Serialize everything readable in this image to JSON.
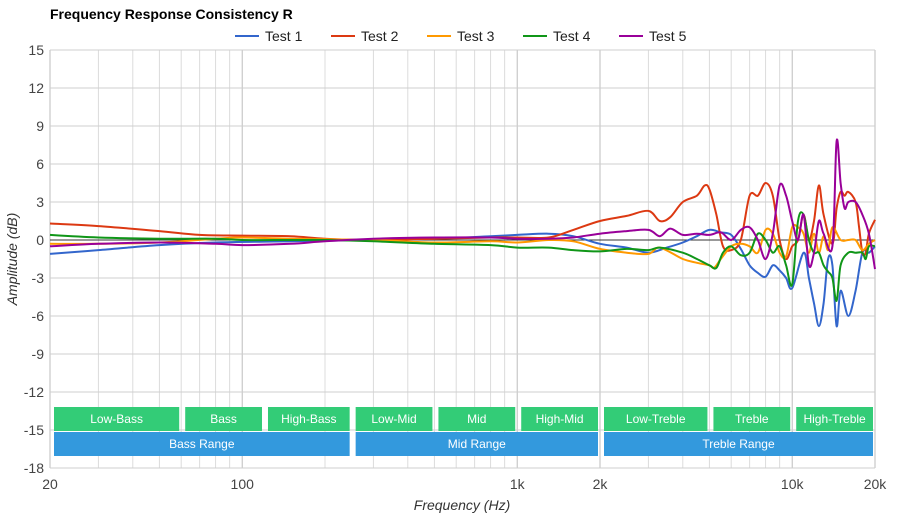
{
  "chart_data": {
    "type": "line",
    "title": "Frequency Response Consistency R",
    "xlabel": "Frequency (Hz)",
    "ylabel": "Amplitude (dB)",
    "x_scale": "log",
    "xlim": [
      20,
      20000
    ],
    "ylim": [
      -18,
      15
    ],
    "y_ticks": [
      15,
      12,
      9,
      6,
      3,
      0,
      -3,
      -6,
      -9,
      -12,
      -15,
      -18
    ],
    "x_ticks": [
      {
        "value": 20,
        "label": "20"
      },
      {
        "value": 100,
        "label": "100"
      },
      {
        "value": 1000,
        "label": "1k"
      },
      {
        "value": 2000,
        "label": "2k"
      },
      {
        "value": 10000,
        "label": "10k"
      },
      {
        "value": 20000,
        "label": "20k"
      }
    ],
    "grid": true,
    "legend_position": "top",
    "series": [
      {
        "name": "Test 1",
        "color": "#3366cc",
        "points": [
          [
            20,
            -1.1
          ],
          [
            30,
            -0.8
          ],
          [
            50,
            -0.4
          ],
          [
            80,
            -0.2
          ],
          [
            150,
            -0.1
          ],
          [
            300,
            0
          ],
          [
            500,
            0.1
          ],
          [
            800,
            0.3
          ],
          [
            1000,
            0.4
          ],
          [
            1300,
            0.5
          ],
          [
            1600,
            0.3
          ],
          [
            2000,
            -0.3
          ],
          [
            2500,
            -0.6
          ],
          [
            3000,
            -1.0
          ],
          [
            3500,
            -0.6
          ],
          [
            4000,
            -0.2
          ],
          [
            4500,
            0.3
          ],
          [
            5000,
            0.8
          ],
          [
            5500,
            0.6
          ],
          [
            6000,
            0.4
          ],
          [
            6500,
            -0.7
          ],
          [
            7000,
            -2.0
          ],
          [
            7500,
            -2.6
          ],
          [
            8000,
            -2.9
          ],
          [
            8500,
            -2.0
          ],
          [
            9000,
            -2.4
          ],
          [
            9500,
            -3.0
          ],
          [
            10000,
            -3.8
          ],
          [
            11000,
            -1.0
          ],
          [
            11500,
            -3.0
          ],
          [
            12000,
            -5.0
          ],
          [
            12500,
            -6.8
          ],
          [
            13000,
            -5.0
          ],
          [
            13500,
            -1.5
          ],
          [
            14000,
            -2.0
          ],
          [
            14500,
            -6.8
          ],
          [
            15000,
            -4.0
          ],
          [
            16000,
            -6.0
          ],
          [
            17000,
            -4.0
          ],
          [
            18000,
            -1.0
          ],
          [
            19000,
            -1.0
          ],
          [
            20000,
            -0.5
          ]
        ]
      },
      {
        "name": "Test 2",
        "color": "#dc3912",
        "points": [
          [
            20,
            1.3
          ],
          [
            30,
            1.1
          ],
          [
            50,
            0.7
          ],
          [
            70,
            0.4
          ],
          [
            100,
            0.35
          ],
          [
            150,
            0.3
          ],
          [
            200,
            0.1
          ],
          [
            300,
            0
          ],
          [
            500,
            0.1
          ],
          [
            800,
            0.2
          ],
          [
            1000,
            0.2
          ],
          [
            1300,
            0.2
          ],
          [
            1600,
            0.8
          ],
          [
            2000,
            1.5
          ],
          [
            2500,
            1.9
          ],
          [
            3000,
            2.3
          ],
          [
            3300,
            1.5
          ],
          [
            3600,
            1.8
          ],
          [
            4000,
            3.0
          ],
          [
            4500,
            3.5
          ],
          [
            4800,
            4.3
          ],
          [
            5000,
            4.0
          ],
          [
            5300,
            2.0
          ],
          [
            5600,
            -0.5
          ],
          [
            6000,
            -0.8
          ],
          [
            6500,
            0.0
          ],
          [
            7000,
            3.5
          ],
          [
            7500,
            3.5
          ],
          [
            8000,
            4.5
          ],
          [
            8500,
            3.5
          ],
          [
            9000,
            0.0
          ],
          [
            9500,
            -1.5
          ],
          [
            10000,
            -0.5
          ],
          [
            10500,
            0.0
          ],
          [
            11000,
            2.0
          ],
          [
            11500,
            0.0
          ],
          [
            12000,
            1.5
          ],
          [
            12500,
            4.3
          ],
          [
            13000,
            2.0
          ],
          [
            14000,
            -0.3
          ],
          [
            14500,
            2.5
          ],
          [
            15000,
            3.8
          ],
          [
            15500,
            3.5
          ],
          [
            16000,
            3.8
          ],
          [
            17000,
            3.0
          ],
          [
            17500,
            1.0
          ],
          [
            18000,
            -1.0
          ],
          [
            18500,
            -1.0
          ],
          [
            19000,
            0.5
          ],
          [
            20000,
            1.6
          ]
        ]
      },
      {
        "name": "Test 3",
        "color": "#ff9900",
        "points": [
          [
            20,
            -0.3
          ],
          [
            30,
            -0.3
          ],
          [
            50,
            -0.2
          ],
          [
            80,
            0.1
          ],
          [
            100,
            0.2
          ],
          [
            150,
            0.1
          ],
          [
            300,
            0
          ],
          [
            500,
            -0.2
          ],
          [
            800,
            -0.1
          ],
          [
            1000,
            -0.2
          ],
          [
            1300,
            0
          ],
          [
            1600,
            -0.1
          ],
          [
            2000,
            -0.7
          ],
          [
            2500,
            -1.0
          ],
          [
            3000,
            -1.1
          ],
          [
            3300,
            -0.6
          ],
          [
            4000,
            -1.5
          ],
          [
            4500,
            -1.8
          ],
          [
            5000,
            -2.0
          ],
          [
            5200,
            -2.2
          ],
          [
            5500,
            -1.5
          ],
          [
            6000,
            -0.5
          ],
          [
            6500,
            -0.3
          ],
          [
            7000,
            -0.5
          ],
          [
            7500,
            -1.0
          ],
          [
            8000,
            0.8
          ],
          [
            8500,
            0.5
          ],
          [
            9000,
            -1.0
          ],
          [
            9500,
            -1.3
          ],
          [
            10000,
            1.0
          ],
          [
            10500,
            1.0
          ],
          [
            11000,
            0.5
          ],
          [
            11500,
            -1.0
          ],
          [
            12000,
            0.5
          ],
          [
            12500,
            -1.0
          ],
          [
            13000,
            0.3
          ],
          [
            13500,
            -0.8
          ],
          [
            14000,
            1.0
          ],
          [
            15000,
            0
          ],
          [
            16000,
            0
          ],
          [
            17000,
            0
          ],
          [
            18000,
            -0.8
          ],
          [
            19000,
            -0.3
          ],
          [
            20000,
            0
          ]
        ]
      },
      {
        "name": "Test 4",
        "color": "#109618",
        "points": [
          [
            20,
            0.4
          ],
          [
            30,
            0.2
          ],
          [
            50,
            0.1
          ],
          [
            80,
            0.1
          ],
          [
            100,
            0
          ],
          [
            150,
            0
          ],
          [
            200,
            0
          ],
          [
            300,
            -0.1
          ],
          [
            500,
            -0.3
          ],
          [
            800,
            -0.4
          ],
          [
            1000,
            -0.6
          ],
          [
            1300,
            -0.6
          ],
          [
            1600,
            -0.8
          ],
          [
            2000,
            -0.9
          ],
          [
            2500,
            -0.7
          ],
          [
            3000,
            -0.8
          ],
          [
            3300,
            -0.6
          ],
          [
            4000,
            -1.0
          ],
          [
            4500,
            -1.5
          ],
          [
            5000,
            -2.0
          ],
          [
            5300,
            -2.2
          ],
          [
            5600,
            -1.0
          ],
          [
            6000,
            -0.5
          ],
          [
            6500,
            -1.2
          ],
          [
            7000,
            -1.0
          ],
          [
            7500,
            0.5
          ],
          [
            8000,
            0.0
          ],
          [
            8500,
            -1.0
          ],
          [
            9000,
            -0.5
          ],
          [
            9500,
            -2.0
          ],
          [
            10000,
            -3.5
          ],
          [
            10500,
            1.5
          ],
          [
            11000,
            2.0
          ],
          [
            11500,
            0.0
          ],
          [
            12000,
            -1.0
          ],
          [
            12500,
            -1.0
          ],
          [
            13000,
            -2.0
          ],
          [
            13500,
            -2.5
          ],
          [
            14000,
            -3.0
          ],
          [
            14500,
            -4.8
          ],
          [
            15000,
            -2.0
          ],
          [
            16000,
            -1.0
          ],
          [
            17000,
            -1.0
          ],
          [
            18000,
            -1.0
          ],
          [
            18500,
            -1.5
          ],
          [
            19000,
            -0.5
          ],
          [
            20000,
            -0.5
          ]
        ]
      },
      {
        "name": "Test 5",
        "color": "#990099",
        "points": [
          [
            20,
            -0.5
          ],
          [
            30,
            -0.3
          ],
          [
            50,
            -0.2
          ],
          [
            80,
            -0.3
          ],
          [
            100,
            -0.4
          ],
          [
            150,
            -0.3
          ],
          [
            200,
            -0.1
          ],
          [
            300,
            0.1
          ],
          [
            500,
            0.2
          ],
          [
            800,
            0.2
          ],
          [
            1000,
            0.1
          ],
          [
            1300,
            0.1
          ],
          [
            1600,
            0.2
          ],
          [
            2000,
            0.5
          ],
          [
            2500,
            0.7
          ],
          [
            3000,
            0.8
          ],
          [
            3300,
            0.3
          ],
          [
            3600,
            0.9
          ],
          [
            4000,
            0.4
          ],
          [
            4500,
            0.5
          ],
          [
            5000,
            0.4
          ],
          [
            5500,
            0.6
          ],
          [
            6000,
            0.0
          ],
          [
            6500,
            0.8
          ],
          [
            7000,
            1.0
          ],
          [
            7500,
            0.0
          ],
          [
            8000,
            -1.5
          ],
          [
            8500,
            0.5
          ],
          [
            9000,
            4.3
          ],
          [
            9500,
            3.5
          ],
          [
            10000,
            1.5
          ],
          [
            10500,
            0.0
          ],
          [
            11000,
            2.0
          ],
          [
            11500,
            -2.0
          ],
          [
            12000,
            -1.0
          ],
          [
            12500,
            1.5
          ],
          [
            13000,
            0.5
          ],
          [
            14000,
            -0.5
          ],
          [
            14500,
            7.8
          ],
          [
            15000,
            4.5
          ],
          [
            15500,
            2.5
          ],
          [
            16000,
            3.0
          ],
          [
            17000,
            3.0
          ],
          [
            18000,
            2.0
          ],
          [
            19000,
            0.5
          ],
          [
            20000,
            -2.3
          ]
        ]
      }
    ],
    "bands_top": [
      {
        "label": "Low-Bass",
        "from": 20,
        "to": 60
      },
      {
        "label": "Bass",
        "from": 60,
        "to": 120
      },
      {
        "label": "High-Bass",
        "from": 120,
        "to": 250
      },
      {
        "label": "Low-Mid",
        "from": 250,
        "to": 500
      },
      {
        "label": "Mid",
        "from": 500,
        "to": 1000
      },
      {
        "label": "High-Mid",
        "from": 1000,
        "to": 2000
      },
      {
        "label": "Low-Treble",
        "from": 2000,
        "to": 5000
      },
      {
        "label": "Treble",
        "from": 5000,
        "to": 10000
      },
      {
        "label": "High-Treble",
        "from": 10000,
        "to": 20000
      }
    ],
    "bands_bottom": [
      {
        "label": "Bass Range",
        "from": 20,
        "to": 250
      },
      {
        "label": "Mid Range",
        "from": 250,
        "to": 2000
      },
      {
        "label": "Treble Range",
        "from": 2000,
        "to": 20000
      }
    ],
    "band_colors": {
      "top": "#33cc77",
      "bottom": "#3399dd"
    }
  }
}
